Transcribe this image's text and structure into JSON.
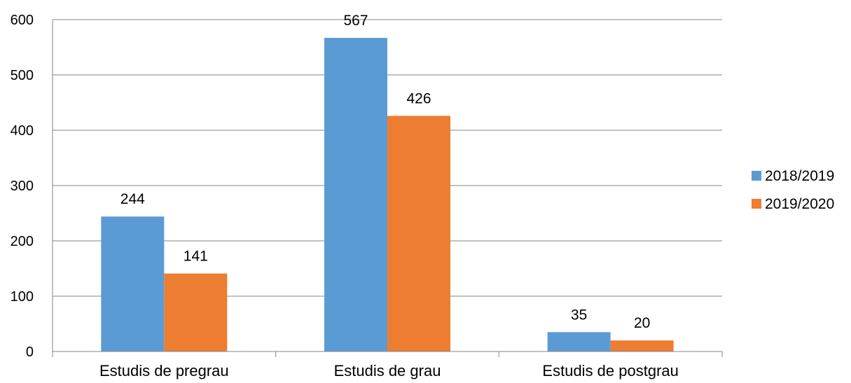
{
  "chart_data": {
    "type": "bar",
    "categories": [
      "Estudis de pregrau",
      "Estudis de grau",
      "Estudis de postgrau"
    ],
    "series": [
      {
        "name": "2018/2019",
        "values": [
          244,
          567,
          35
        ],
        "color": "#5b9bd5"
      },
      {
        "name": "2019/2020",
        "values": [
          141,
          426,
          20
        ],
        "color": "#ed7d31"
      }
    ],
    "ylim": [
      0,
      600
    ],
    "yticks": [
      0,
      100,
      200,
      300,
      400,
      500,
      600
    ],
    "grid": true,
    "legend_position": "right",
    "data_labels": true,
    "title": "",
    "xlabel": "",
    "ylabel": ""
  }
}
